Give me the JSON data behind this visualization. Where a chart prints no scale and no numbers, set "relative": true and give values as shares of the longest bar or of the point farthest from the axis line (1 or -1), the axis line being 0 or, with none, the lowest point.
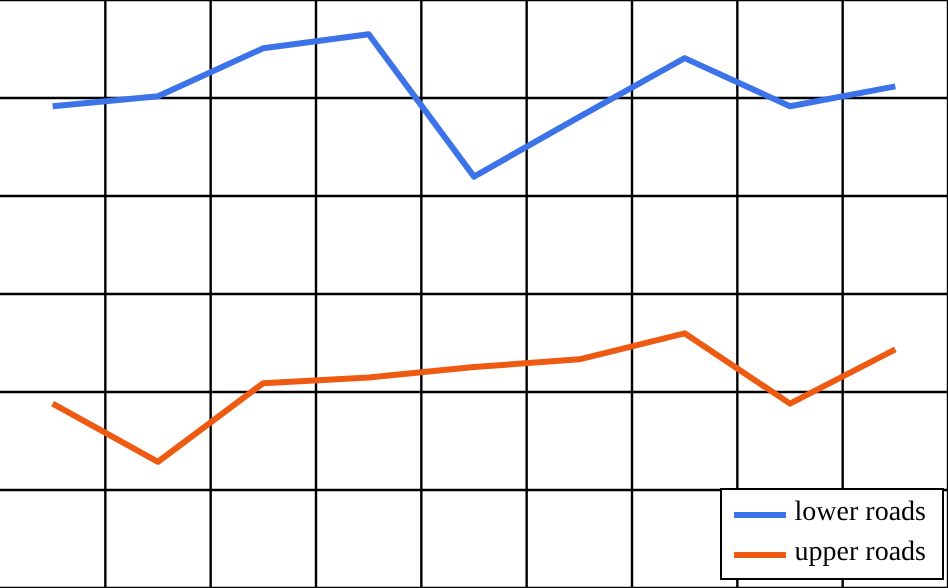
{
  "chart_data": {
    "type": "line",
    "relative": true,
    "categories": [
      null,
      null,
      null,
      null,
      null,
      null,
      null,
      null,
      null
    ],
    "grid": true,
    "legend": "bottom right",
    "marker": "none",
    "line_style": "solid",
    "series": [
      {
        "name": "lower roads",
        "color": "#3d73e8",
        "values": [
          0.87,
          0.888,
          0.975,
          1,
          0.743,
          0.851,
          0.957,
          0.87,
          0.906
        ]
      },
      {
        "name": "upper roads",
        "color": "#ee5a12",
        "values": [
          0.333,
          0.228,
          0.37,
          0.38,
          0.399,
          0.413,
          0.46,
          0.333,
          0.431
        ]
      }
    ]
  }
}
